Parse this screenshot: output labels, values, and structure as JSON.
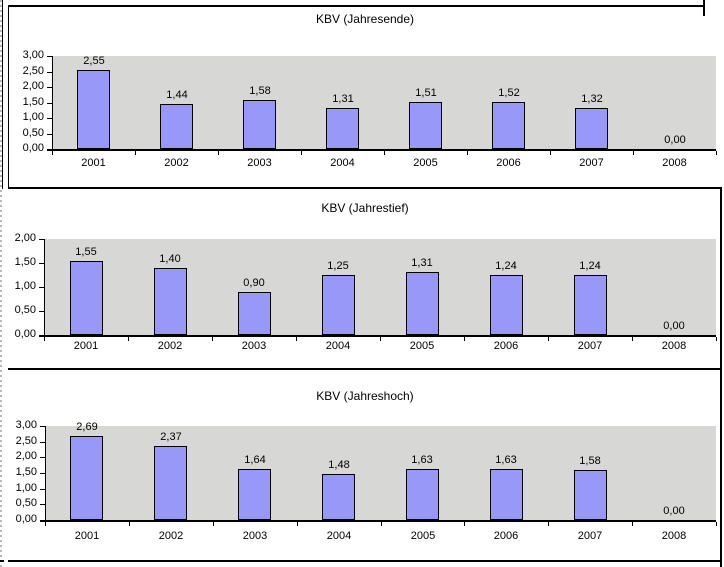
{
  "chart_data": [
    {
      "type": "bar",
      "title": "KBV (Jahresende)",
      "categories": [
        "2001",
        "2002",
        "2003",
        "2004",
        "2005",
        "2006",
        "2007",
        "2008"
      ],
      "values": [
        2.55,
        1.44,
        1.58,
        1.31,
        1.51,
        1.52,
        1.32,
        0
      ],
      "value_labels": [
        "2,55",
        "1,44",
        "1,58",
        "1,31",
        "1,51",
        "1,52",
        "1,32",
        "0,00"
      ],
      "ylim": [
        0,
        3
      ],
      "ytick_step": 0.5,
      "ytick_labels_top_to_bottom": [
        "3,00",
        "2,50",
        "2,00",
        "1,50",
        "1,00",
        "0,50",
        "0,00"
      ],
      "grid": false,
      "legend": false,
      "bar_fill": "#9898f8",
      "bar_border": "#000000",
      "plot_bg": "#e6e6e4",
      "plot_dot": "#a9a9a9"
    },
    {
      "type": "bar",
      "title": "KBV (Jahrestief)",
      "categories": [
        "2001",
        "2002",
        "2003",
        "2004",
        "2005",
        "2006",
        "2007",
        "2008"
      ],
      "values": [
        1.55,
        1.4,
        0.9,
        1.25,
        1.31,
        1.24,
        1.24,
        0
      ],
      "value_labels": [
        "1,55",
        "1,40",
        "0,90",
        "1,25",
        "1,31",
        "1,24",
        "1,24",
        "0,00"
      ],
      "ylim": [
        0,
        2
      ],
      "ytick_step": 0.5,
      "ytick_labels_top_to_bottom": [
        "2,00",
        "1,50",
        "1,00",
        "0,50",
        "0,00"
      ],
      "grid": false,
      "legend": false,
      "bar_fill": "#9898f8",
      "bar_border": "#000000",
      "plot_bg": "#e6e6e4",
      "plot_dot": "#a9a9a9"
    },
    {
      "type": "bar",
      "title": "KBV (Jahreshoch)",
      "categories": [
        "2001",
        "2002",
        "2003",
        "2004",
        "2005",
        "2006",
        "2007",
        "2008"
      ],
      "values": [
        2.69,
        2.37,
        1.64,
        1.48,
        1.63,
        1.63,
        1.58,
        0
      ],
      "value_labels": [
        "2,69",
        "2,37",
        "1,64",
        "1,48",
        "1,63",
        "1,63",
        "1,58",
        "0,00"
      ],
      "ylim": [
        0,
        3
      ],
      "ytick_step": 0.5,
      "ytick_labels_top_to_bottom": [
        "3,00",
        "2,50",
        "2,00",
        "1,50",
        "1,00",
        "0,50",
        "0,00"
      ],
      "grid": false,
      "legend": false,
      "bar_fill": "#9898f8",
      "bar_border": "#000000",
      "plot_bg": "#e6e6e4",
      "plot_dot": "#a9a9a9"
    }
  ]
}
